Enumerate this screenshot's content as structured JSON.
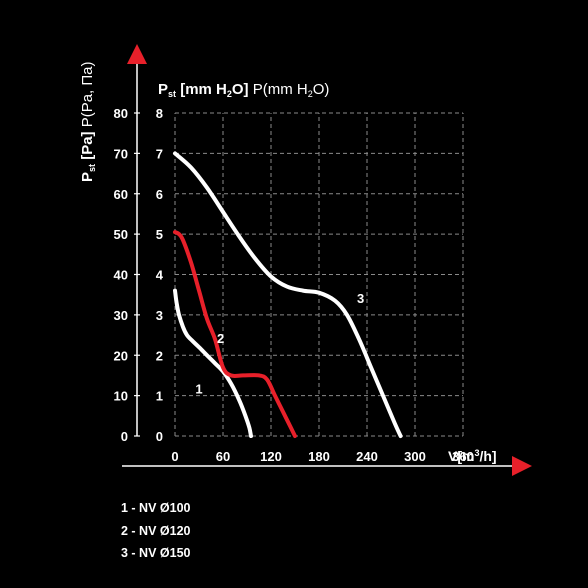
{
  "chart_data": {
    "type": "line",
    "x_label": {
      "main": "V[m",
      "sup": "3",
      "tail": "/h]"
    },
    "x_ticks": [
      "0",
      "60",
      "120",
      "180",
      "240",
      "300",
      "360"
    ],
    "x_values": [
      0,
      60,
      120,
      180,
      240,
      300,
      360
    ],
    "xlim": [
      0,
      360
    ],
    "y_mm_ticks": [
      "0",
      "1",
      "2",
      "3",
      "4",
      "5",
      "6",
      "7",
      "8"
    ],
    "y_mm_values": [
      0,
      1,
      2,
      3,
      4,
      5,
      6,
      7,
      8
    ],
    "y_pa_ticks": [
      "0",
      "10",
      "20",
      "30",
      "40",
      "50",
      "60",
      "70",
      "80"
    ],
    "ylim_mm": [
      0,
      8
    ],
    "y_label_mm": {
      "p": "P",
      "st": "st",
      "part1": " [mm H",
      "sub2": "2",
      "part2": "O]",
      "part3": " P(mm H",
      "sub3": "2",
      "part4": "O)"
    },
    "y_label_pa": {
      "p": "P",
      "st": "st",
      "bold": " [Pa]",
      "normal": " P(Pa, Па)"
    },
    "grid": true,
    "series": [
      {
        "name": "1 - NV Ø100",
        "curve_label": "1",
        "color": "#ffffff",
        "points": [
          [
            0,
            3.6
          ],
          [
            2,
            3.3
          ],
          [
            5,
            3.0
          ],
          [
            10,
            2.7
          ],
          [
            15,
            2.5
          ],
          [
            22,
            2.35
          ],
          [
            30,
            2.2
          ],
          [
            40,
            2.0
          ],
          [
            50,
            1.8
          ],
          [
            60,
            1.6
          ],
          [
            70,
            1.3
          ],
          [
            80,
            0.9
          ],
          [
            88,
            0.5
          ],
          [
            93,
            0.2
          ],
          [
            95,
            0
          ]
        ]
      },
      {
        "name": "2 - NV Ø120",
        "curve_label": "2",
        "color": "#e8202a",
        "points": [
          [
            0,
            5.05
          ],
          [
            5,
            5.0
          ],
          [
            10,
            4.85
          ],
          [
            20,
            4.3
          ],
          [
            30,
            3.6
          ],
          [
            40,
            2.9
          ],
          [
            50,
            2.4
          ],
          [
            60,
            1.7
          ],
          [
            70,
            1.5
          ],
          [
            85,
            1.5
          ],
          [
            105,
            1.5
          ],
          [
            115,
            1.4
          ],
          [
            125,
            1.0
          ],
          [
            135,
            0.6
          ],
          [
            145,
            0.2
          ],
          [
            150,
            0
          ]
        ]
      },
      {
        "name": "3 - NV Ø150",
        "curve_label": "3",
        "color": "#ffffff",
        "points": [
          [
            0,
            7.0
          ],
          [
            20,
            6.65
          ],
          [
            40,
            6.15
          ],
          [
            60,
            5.55
          ],
          [
            80,
            4.95
          ],
          [
            100,
            4.4
          ],
          [
            120,
            3.95
          ],
          [
            140,
            3.7
          ],
          [
            160,
            3.6
          ],
          [
            180,
            3.55
          ],
          [
            200,
            3.35
          ],
          [
            215,
            3.0
          ],
          [
            230,
            2.4
          ],
          [
            245,
            1.7
          ],
          [
            260,
            1.0
          ],
          [
            275,
            0.3
          ],
          [
            282,
            0
          ]
        ]
      }
    ],
    "legend": [
      "1 - NV Ø100",
      "2 - NV Ø120",
      "3 - NV Ø150"
    ]
  }
}
